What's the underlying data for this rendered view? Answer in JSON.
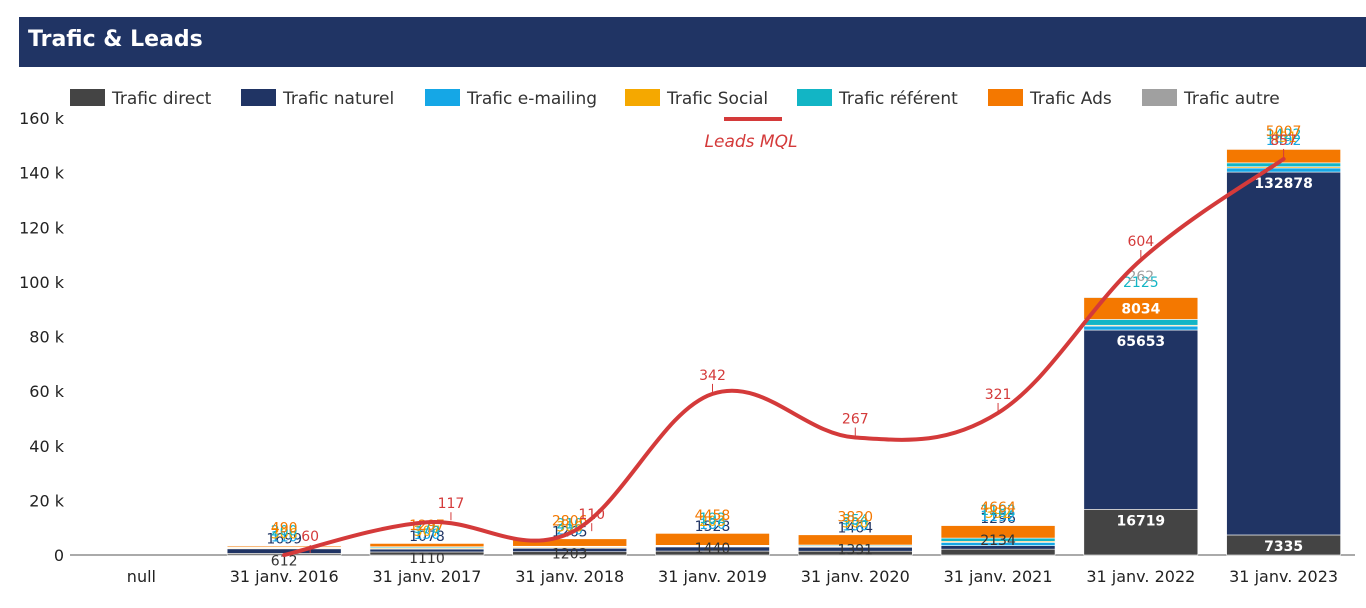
{
  "header": {
    "title": "Trafic & Leads"
  },
  "chart_data": {
    "type": "bar",
    "title": "Trafic & Leads",
    "categories": [
      "null",
      "31 janv. 2016",
      "31 janv. 2017",
      "31 janv. 2018",
      "31 janv. 2019",
      "31 janv. 2020",
      "31 janv. 2021",
      "31 janv. 2022",
      "31 janv. 2023"
    ],
    "ylim": [
      0,
      160000
    ],
    "yticks": [
      0,
      20000,
      40000,
      60000,
      80000,
      100000,
      120000,
      140000,
      160000
    ],
    "ytick_labels": [
      "0",
      "20 k",
      "40 k",
      "60 k",
      "80 k",
      "100 k",
      "120 k",
      "140 k",
      "160 k"
    ],
    "grid": false,
    "legend_position": "top",
    "series": [
      {
        "name": "Trafic direct",
        "color": "#444444",
        "values": [
          0,
          612,
          1110,
          1203,
          1440,
          1391,
          2134,
          16719,
          7335
        ],
        "labels": [
          "",
          "612",
          "1110",
          "1203",
          "1440",
          "1391",
          "2134",
          "16719",
          "7335"
        ]
      },
      {
        "name": "Trafic naturel",
        "color": "#203464",
        "values": [
          0,
          1699,
          1078,
          1265,
          1528,
          1464,
          1296,
          65653,
          132878
        ],
        "labels": [
          "",
          "1699",
          "1078",
          "1265",
          "1528",
          "1464",
          "1296",
          "65653",
          "132878"
        ]
      },
      {
        "name": "Trafic e-mailing",
        "color": "#15a7e6",
        "values": [
          0,
          110,
          150,
          220,
          180,
          150,
          1192,
          1450,
          1492
        ],
        "labels": [
          "",
          "110",
          "150",
          "220",
          "180",
          "150",
          "1192",
          "",
          "1492"
        ]
      },
      {
        "name": "Trafic Social",
        "color": "#f5a800",
        "values": [
          0,
          306,
          307,
          306,
          203,
          300,
          392,
          300,
          451
        ],
        "labels": [
          "",
          "306",
          "307",
          "306",
          "203",
          "300",
          "392",
          "",
          "451"
        ]
      },
      {
        "name": "Trafic référent",
        "color": "#12b5c5",
        "values": [
          0,
          200,
          376,
          210,
          192,
          354,
          1182,
          2125,
          1422
        ],
        "labels": [
          "",
          "200",
          "376",
          "210",
          "192",
          "354",
          "1182",
          "2125",
          "1422"
        ]
      },
      {
        "name": "Trafic Ads",
        "color": "#f47800",
        "values": [
          0,
          490,
          1297,
          2806,
          4458,
          3820,
          4664,
          8034,
          5007
        ],
        "labels": [
          "",
          "490",
          "1297",
          "2806",
          "4458",
          "3820",
          "4664",
          "8034",
          "5007"
        ]
      },
      {
        "name": "Trafic autre",
        "color": "#a0a0a0",
        "values": [
          0,
          100,
          100,
          100,
          100,
          100,
          100,
          262,
          100
        ],
        "labels": [
          "",
          "",
          "",
          "",
          "",
          "",
          "",
          "262",
          ""
        ]
      }
    ],
    "line_series": {
      "name": "Leads MQL",
      "color": "#d43a3a",
      "values": [
        null,
        60,
        117,
        110,
        342,
        267,
        321,
        604,
        857
      ],
      "labels": [
        "",
        "60",
        "117",
        "110",
        "342",
        "267",
        "321",
        "604",
        "857"
      ],
      "y_at": [
        null,
        0,
        12000,
        8000,
        59000,
        43000,
        52000,
        108000,
        145000
      ]
    }
  }
}
